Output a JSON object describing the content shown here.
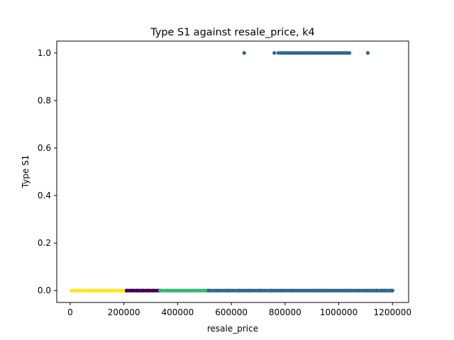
{
  "chart_data": {
    "type": "scatter",
    "title": "Type S1 against resale_price, k4",
    "xlabel": "resale_price",
    "ylabel": "Type S1",
    "xlim": [
      -50000,
      1260000
    ],
    "ylim": [
      -0.05,
      1.05
    ],
    "x_ticks": [
      0,
      200000,
      400000,
      600000,
      800000,
      1000000,
      1200000
    ],
    "x_tick_labels": [
      "0",
      "200000",
      "400000",
      "600000",
      "800000",
      "1000000",
      "1200000"
    ],
    "y_ticks": [
      0.0,
      0.2,
      0.4,
      0.6,
      0.8,
      1.0
    ],
    "y_tick_labels": [
      "0.0",
      "0.2",
      "0.4",
      "0.6",
      "0.8",
      "1.0"
    ],
    "grid": false,
    "legend": "none",
    "colors": {
      "cluster_yellow": "#fde725",
      "cluster_purple": "#440154",
      "cluster_green": "#35b779",
      "cluster_blue": "#31688e"
    },
    "series": [
      {
        "color": "#fde725",
        "points": [
          [
            5000,
            0
          ],
          [
            15000,
            0
          ],
          [
            30000,
            0
          ],
          [
            50000,
            0
          ],
          [
            75000,
            0
          ],
          [
            100000,
            0
          ],
          [
            125000,
            0
          ],
          [
            150000,
            0
          ],
          [
            175000,
            0
          ],
          [
            200000,
            0
          ],
          [
            205000,
            0
          ]
        ]
      },
      {
        "color": "#440154",
        "points": [
          [
            210000,
            0
          ],
          [
            230000,
            0
          ],
          [
            250000,
            0
          ],
          [
            270000,
            0
          ],
          [
            290000,
            0
          ],
          [
            310000,
            0
          ],
          [
            330000,
            0
          ]
        ]
      },
      {
        "color": "#35b779",
        "points": [
          [
            335000,
            0
          ],
          [
            360000,
            0
          ],
          [
            385000,
            0
          ],
          [
            410000,
            0
          ],
          [
            435000,
            0
          ],
          [
            460000,
            0
          ],
          [
            485000,
            0
          ],
          [
            510000,
            0
          ]
        ]
      },
      {
        "color": "#31688e",
        "points": [
          [
            515000,
            0
          ],
          [
            550000,
            0
          ],
          [
            590000,
            0
          ],
          [
            630000,
            0
          ],
          [
            670000,
            0
          ],
          [
            710000,
            0
          ],
          [
            750000,
            0
          ],
          [
            790000,
            0
          ],
          [
            830000,
            0
          ],
          [
            870000,
            0
          ],
          [
            910000,
            0
          ],
          [
            950000,
            0
          ],
          [
            990000,
            0
          ],
          [
            1030000,
            0
          ],
          [
            1070000,
            0
          ],
          [
            1100000,
            0
          ],
          [
            1120000,
            0
          ],
          [
            1140000,
            0
          ],
          [
            1160000,
            0
          ],
          [
            1170000,
            0
          ],
          [
            1185000,
            0
          ],
          [
            1195000,
            0
          ],
          [
            1200000,
            0
          ],
          [
            648000,
            1
          ],
          [
            760000,
            1
          ],
          [
            775000,
            1
          ],
          [
            785000,
            1
          ],
          [
            792000,
            1
          ],
          [
            800000,
            1
          ],
          [
            808000,
            1
          ],
          [
            815000,
            1
          ],
          [
            822000,
            1
          ],
          [
            830000,
            1
          ],
          [
            838000,
            1
          ],
          [
            845000,
            1
          ],
          [
            852000,
            1
          ],
          [
            860000,
            1
          ],
          [
            868000,
            1
          ],
          [
            875000,
            1
          ],
          [
            882000,
            1
          ],
          [
            890000,
            1
          ],
          [
            898000,
            1
          ],
          [
            905000,
            1
          ],
          [
            912000,
            1
          ],
          [
            920000,
            1
          ],
          [
            928000,
            1
          ],
          [
            935000,
            1
          ],
          [
            942000,
            1
          ],
          [
            950000,
            1
          ],
          [
            958000,
            1
          ],
          [
            965000,
            1
          ],
          [
            972000,
            1
          ],
          [
            980000,
            1
          ],
          [
            988000,
            1
          ],
          [
            995000,
            1
          ],
          [
            1003000,
            1
          ],
          [
            1010000,
            1
          ],
          [
            1018000,
            1
          ],
          [
            1025000,
            1
          ],
          [
            1032000,
            1
          ],
          [
            1040000,
            1
          ],
          [
            1108000,
            1
          ]
        ]
      }
    ]
  }
}
